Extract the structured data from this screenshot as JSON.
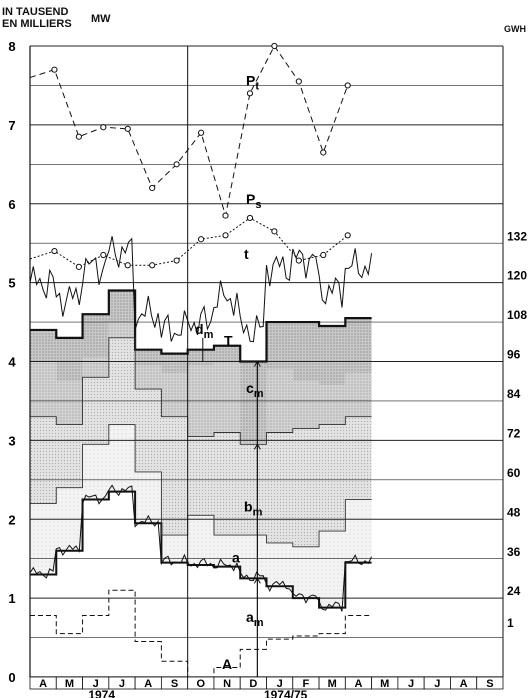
{
  "header": {
    "left_unit_line1": "IN TAUSEND",
    "left_unit_line2": "EN MILLIERS",
    "left_unit": "MW",
    "right_unit": "GWH"
  },
  "chart_data": {
    "type": "line",
    "y_left": {
      "min": 0,
      "max": 8,
      "ticks": [
        0,
        1,
        2,
        3,
        4,
        5,
        6,
        7,
        8
      ]
    },
    "y_right_visible_ticks": [
      "1",
      "24",
      "36",
      "48",
      "60",
      "72",
      "84",
      "96",
      "108",
      "120",
      "132"
    ],
    "months": [
      "A",
      "M",
      "J",
      "J",
      "A",
      "S",
      "O",
      "N",
      "D",
      "J",
      "F",
      "M",
      "A",
      "M",
      "J",
      "J",
      "A",
      "S"
    ],
    "year_labels": [
      "1974",
      "1974/75"
    ],
    "curve_labels": {
      "Pt": "P",
      "Pt_sub": "t",
      "Ps": "P",
      "Ps_sub": "s",
      "t": "t",
      "T": "T",
      "dm": "d",
      "dm_sub": "m",
      "cm": "c",
      "cm_sub": "m",
      "bm": "b",
      "bm_sub": "m",
      "a": "a",
      "am": "a",
      "am_sub": "m",
      "A": "A"
    },
    "series": [
      {
        "key": "Pt",
        "style": "dashed-markers",
        "values": [
          7.6,
          7.7,
          6.85,
          6.97,
          6.95,
          6.2,
          6.5,
          6.9,
          5.85,
          7.4,
          8.0,
          7.55,
          6.65,
          7.5
        ]
      },
      {
        "key": "Ps",
        "style": "dotted-markers",
        "values": [
          5.3,
          5.4,
          5.2,
          5.35,
          5.22,
          5.22,
          5.28,
          5.55,
          5.6,
          5.82,
          5.65,
          5.28,
          5.35,
          5.6
        ]
      },
      {
        "key": "T",
        "style": "bold-step",
        "values": [
          4.4,
          4.3,
          4.6,
          4.9,
          4.15,
          4.1,
          4.15,
          4.2,
          4.0,
          4.5,
          4.5,
          4.45,
          4.55
        ]
      },
      {
        "key": "a",
        "style": "bold-step",
        "values": [
          1.3,
          1.6,
          2.25,
          2.35,
          1.95,
          1.45,
          1.42,
          1.4,
          1.25,
          1.15,
          1.0,
          0.88,
          1.45
        ]
      },
      {
        "key": "A",
        "style": "dashed-step",
        "values": [
          0.78,
          0.55,
          0.78,
          1.1,
          0.45,
          0.2,
          0.0,
          0.12,
          0.35,
          0.48,
          0.52,
          0.55,
          0.78
        ]
      }
    ],
    "band_boundaries": {
      "dm_lower": [
        4.0,
        3.75,
        4.05,
        4.5,
        3.95,
        3.85,
        3.95,
        3.98,
        3.0,
        3.9,
        3.75,
        3.7,
        3.85
      ],
      "cm_lower": [
        3.3,
        3.2,
        3.8,
        4.3,
        3.65,
        3.3,
        3.05,
        3.1,
        2.95,
        3.1,
        3.15,
        3.2,
        3.3
      ],
      "bm_lower": [
        2.2,
        2.4,
        2.95,
        3.2,
        2.6,
        1.8,
        2.05,
        1.8,
        1.8,
        1.7,
        1.65,
        1.85,
        2.25
      ]
    }
  }
}
